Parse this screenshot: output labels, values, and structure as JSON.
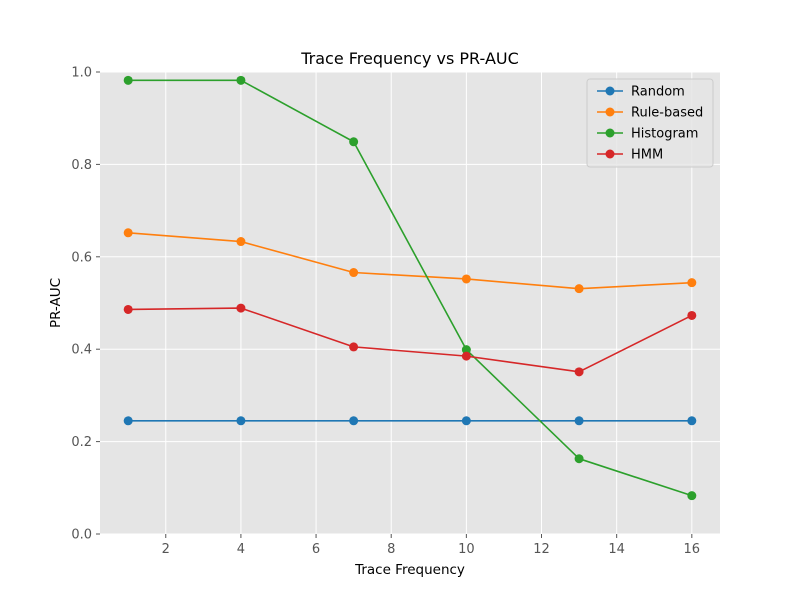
{
  "chart_data": {
    "type": "line",
    "title": "Trace Frequency vs PR-AUC",
    "xlabel": "Trace Frequency",
    "ylabel": "PR-AUC",
    "x": [
      1,
      4,
      7,
      10,
      13,
      16
    ],
    "xlim": [
      0.25,
      16.75
    ],
    "ylim": [
      0.0,
      1.0
    ],
    "xticks": [
      2,
      4,
      6,
      8,
      10,
      12,
      14,
      16
    ],
    "yticks": [
      0.0,
      0.2,
      0.4,
      0.6,
      0.8,
      1.0
    ],
    "xtick_labels": [
      "2",
      "4",
      "6",
      "8",
      "10",
      "12",
      "14",
      "16"
    ],
    "ytick_labels": [
      "0.0",
      "0.2",
      "0.4",
      "0.6",
      "0.8",
      "1.0"
    ],
    "grid": true,
    "legend_position": "top-right",
    "series": [
      {
        "name": "Random",
        "color": "#1f77b4",
        "values": [
          0.245,
          0.245,
          0.245,
          0.245,
          0.245,
          0.245
        ]
      },
      {
        "name": "Rule-based",
        "color": "#ff7f0e",
        "values": [
          0.652,
          0.633,
          0.566,
          0.552,
          0.531,
          0.544
        ]
      },
      {
        "name": "Histogram",
        "color": "#2ca02c",
        "values": [
          0.982,
          0.982,
          0.849,
          0.399,
          0.163,
          0.083
        ]
      },
      {
        "name": "HMM",
        "color": "#d62728",
        "values": [
          0.486,
          0.489,
          0.405,
          0.385,
          0.351,
          0.473
        ]
      }
    ]
  }
}
